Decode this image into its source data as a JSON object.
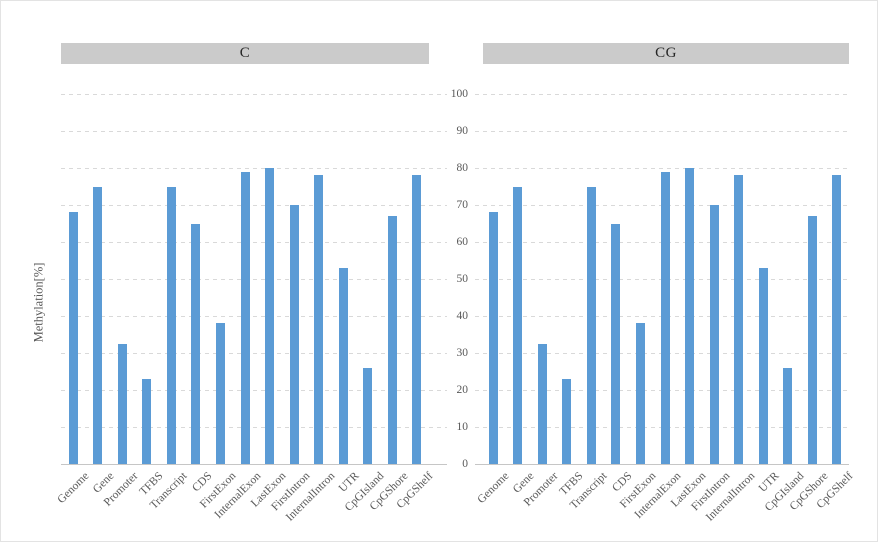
{
  "chart_data": {
    "type": "bar",
    "title": "",
    "ylabel": "Methylation[%]",
    "xlabel": "",
    "ylim": [
      0,
      100
    ],
    "yticks": [
      0,
      10,
      20,
      30,
      40,
      50,
      60,
      70,
      80,
      90,
      100
    ],
    "grid": "horizontal-dashed",
    "legend": "none",
    "categories": [
      "Genome",
      "Gene",
      "Promoter",
      "TFBS",
      "Transcript",
      "CDS",
      "FirstExon",
      "InternalExon",
      "LastExon",
      "FirstIntron",
      "InternalIntron",
      "UTR",
      "CpGIsland",
      "CpGShore",
      "CpGShelf"
    ],
    "panels": [
      {
        "title": "C",
        "values": [
          68,
          75,
          32.5,
          23,
          75,
          65,
          38,
          79,
          80,
          70,
          78,
          53,
          26,
          67,
          78
        ]
      },
      {
        "title": "CG",
        "values": [
          68,
          75,
          32.5,
          23,
          75,
          65,
          38,
          79,
          80,
          70,
          78,
          53,
          26,
          67,
          78
        ]
      }
    ],
    "colors": {
      "bar": "#5B9BD5",
      "panel_header_bg": "#CBCBCB",
      "gridline": "#D9D9D9",
      "axis_line": "#C6C6C6",
      "tick_text": "#595959",
      "title_text": "#262626"
    }
  }
}
